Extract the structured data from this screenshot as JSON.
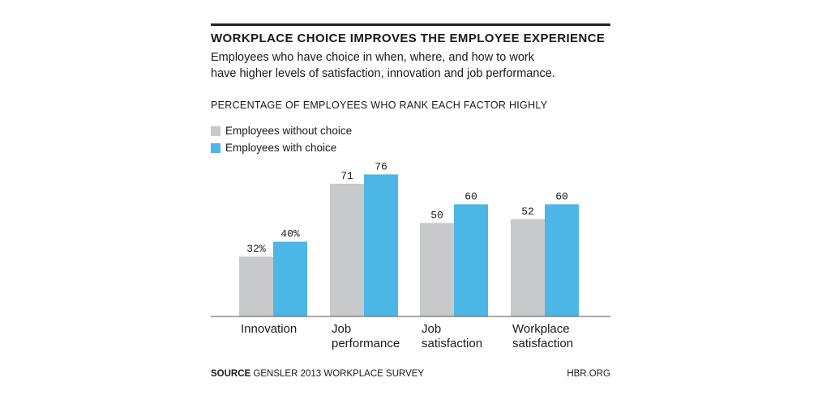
{
  "title": "WORKPLACE CHOICE IMPROVES THE EMPLOYEE EXPERIENCE",
  "subtitle_lines": [
    "Employees who have choice in when, where, and how to work",
    "have higher levels of satisfaction, innovation and job performance."
  ],
  "measure_label": "PERCENTAGE OF EMPLOYEES WHO RANK EACH FACTOR HIGHLY",
  "source_label": "SOURCE",
  "source_text": "GENSLER 2013 WORKPLACE SURVEY",
  "site": "HBR.ORG",
  "colors": {
    "without": "#c8c9cb",
    "with": "#4cb7e6"
  },
  "chart_data": {
    "type": "bar",
    "categories": [
      [
        "Innovation"
      ],
      [
        "Job",
        "performance"
      ],
      [
        "Job",
        "satisfaction"
      ],
      [
        "Workplace",
        "satisfaction"
      ]
    ],
    "series": [
      {
        "name": "Employees without choice",
        "values": [
          32,
          71,
          50,
          52
        ],
        "labels": [
          "32%",
          "71",
          "50",
          "52"
        ]
      },
      {
        "name": "Employees with choice",
        "values": [
          40,
          76,
          60,
          60
        ],
        "labels": [
          "40%",
          "76",
          "60",
          "60"
        ]
      }
    ],
    "ylim": [
      0,
      100
    ],
    "xlabel": "",
    "ylabel": ""
  }
}
